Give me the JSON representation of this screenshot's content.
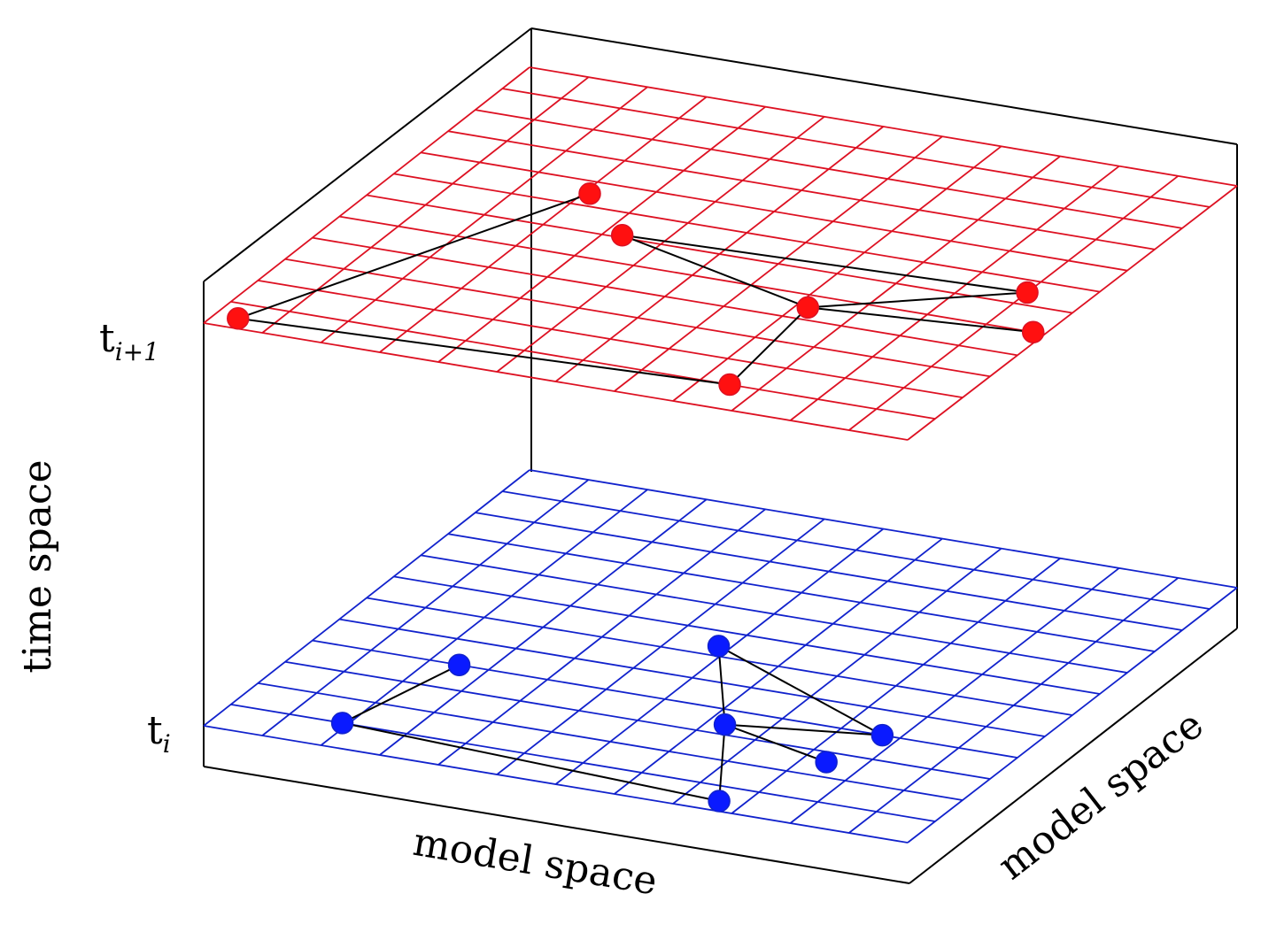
{
  "labels": {
    "vertical_axis": "time space",
    "bottom_axis": "model space",
    "depth_axis": "model space",
    "lower_level": {
      "base": "t",
      "sub": "i"
    },
    "upper_level": {
      "base": "t",
      "sub": "i+1"
    }
  },
  "layers": [
    {
      "id": "t_i+1",
      "color": "#dd1122",
      "node_color": "#ff1010",
      "nodes": [
        {
          "id": "a",
          "u": 3.1,
          "v": 7.5
        },
        {
          "id": "b",
          "u": 4.3,
          "v": 6.1
        },
        {
          "id": "c",
          "u": 8.2,
          "v": 4.5
        },
        {
          "id": "d",
          "u": 11.0,
          "v": 6.5
        },
        {
          "id": "e",
          "u": 11.8,
          "v": 5.0
        },
        {
          "id": "f",
          "u": 0.4,
          "v": 0.4
        },
        {
          "id": "g",
          "u": 8.5,
          "v": 1.0
        }
      ],
      "links": [
        [
          "a",
          "f"
        ],
        [
          "b",
          "d"
        ],
        [
          "b",
          "c"
        ],
        [
          "c",
          "d"
        ],
        [
          "c",
          "e"
        ],
        [
          "c",
          "g"
        ],
        [
          "f",
          "g"
        ]
      ]
    },
    {
      "id": "t_i",
      "color": "#1122cc",
      "node_color": "#0a1aff",
      "nodes": [
        {
          "id": "a",
          "u": 2.5,
          "v": 4.0
        },
        {
          "id": "b",
          "u": 5.8,
          "v": 6.4
        },
        {
          "id": "c",
          "u": 9.7,
          "v": 4.0
        },
        {
          "id": "d",
          "u": 7.3,
          "v": 3.4
        },
        {
          "id": "e",
          "u": 9.4,
          "v": 2.6
        },
        {
          "id": "f",
          "u": 1.9,
          "v": 1.0
        },
        {
          "id": "g",
          "u": 8.6,
          "v": 0.4
        }
      ],
      "links": [
        [
          "a",
          "f"
        ],
        [
          "b",
          "c"
        ],
        [
          "b",
          "d"
        ],
        [
          "c",
          "d"
        ],
        [
          "d",
          "e"
        ],
        [
          "d",
          "g"
        ],
        [
          "f",
          "g"
        ]
      ]
    }
  ]
}
